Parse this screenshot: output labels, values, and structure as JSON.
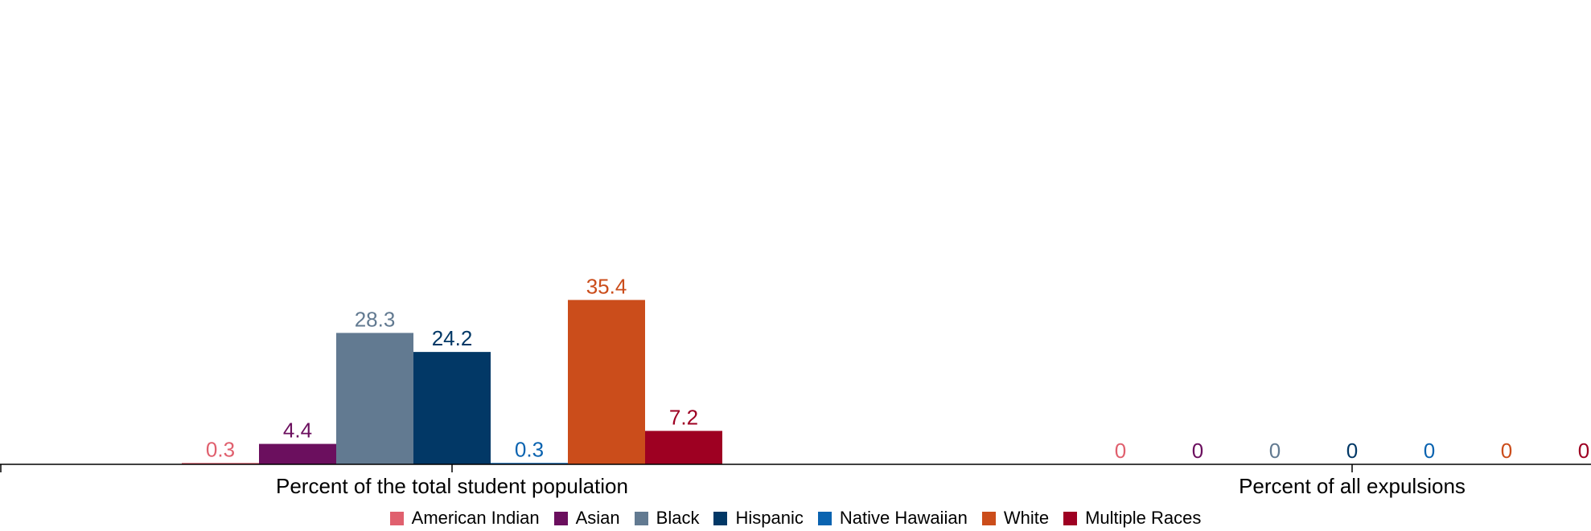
{
  "chart_data": {
    "type": "bar",
    "categories": [
      "Percent of the total student population",
      "Percent of all expulsions"
    ],
    "series": [
      {
        "name": "American Indian",
        "color": "#e0606e",
        "values": [
          0.3,
          0
        ]
      },
      {
        "name": "Asian",
        "color": "#6b0f5e",
        "values": [
          4.4,
          0
        ]
      },
      {
        "name": "Black",
        "color": "#627a91",
        "values": [
          28.3,
          0
        ]
      },
      {
        "name": "Hispanic",
        "color": "#023866",
        "values": [
          24.2,
          0
        ]
      },
      {
        "name": "Native Hawaiian",
        "color": "#0a63b0",
        "values": [
          0.3,
          0
        ]
      },
      {
        "name": "White",
        "color": "#cb4d1b",
        "values": [
          35.4,
          0
        ]
      },
      {
        "name": "Multiple Races",
        "color": "#9e0022",
        "values": [
          7.2,
          0
        ]
      }
    ],
    "value_labels": [
      [
        "0.3",
        "4.4",
        "28.3",
        "24.2",
        "0.3",
        "35.4",
        "7.2"
      ],
      [
        "0",
        "0",
        "0",
        "0",
        "0",
        "0",
        "0"
      ]
    ],
    "ylim": [
      0,
      100
    ],
    "grid": false,
    "legend_position": "bottom"
  }
}
